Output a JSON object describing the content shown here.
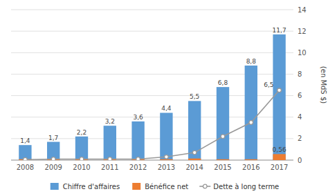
{
  "chart_data": {
    "type": "bar",
    "categories": [
      "2008",
      "2009",
      "2010",
      "2011",
      "2012",
      "2013",
      "2014",
      "2015",
      "2016",
      "2017"
    ],
    "series": [
      {
        "name": "Chiffre d'affaires",
        "color": "#5B9BD5",
        "data_labels": true,
        "values": [
          1.4,
          1.7,
          2.2,
          3.2,
          3.6,
          4.4,
          5.5,
          6.8,
          8.8,
          11.7
        ],
        "value_labels": [
          "1,4",
          "1,7",
          "2,2",
          "3,2",
          "3,6",
          "4,4",
          "5,5",
          "6,8",
          "8,8",
          "11,7"
        ]
      },
      {
        "name": "Bénéfice net",
        "color": "#ED7D31",
        "data_labels": true,
        "values": [
          0.08,
          0.08,
          0.08,
          0.08,
          0.08,
          0.08,
          0.15,
          0.08,
          0.08,
          0.56
        ],
        "value_labels": [
          null,
          null,
          null,
          null,
          null,
          null,
          null,
          null,
          null,
          "0,56"
        ]
      },
      {
        "name": "Dette à long terme",
        "type": "line",
        "color": "#999999",
        "marker": "circle",
        "data_labels": true,
        "values": [
          0.05,
          0.1,
          0.1,
          0.1,
          0.1,
          0.3,
          0.7,
          2.2,
          3.5,
          6.5
        ],
        "value_labels": [
          null,
          null,
          null,
          null,
          null,
          null,
          null,
          null,
          null,
          "6,5"
        ]
      }
    ],
    "ylabel": "(en MdS $)",
    "ylim": [
      0,
      14
    ],
    "yticks": [
      0,
      2,
      4,
      6,
      8,
      10,
      12,
      14
    ],
    "grid": true,
    "legend": "bottom"
  }
}
